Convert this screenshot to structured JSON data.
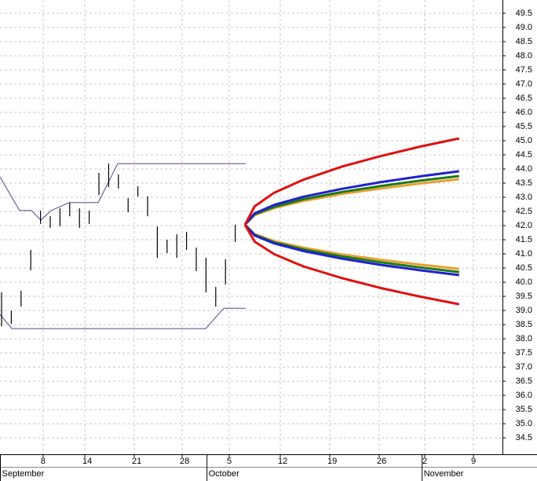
{
  "chart_data": {
    "type": "ohlc",
    "x": [
      0,
      1,
      2,
      3,
      4,
      5,
      6,
      7,
      8,
      9,
      10,
      11,
      12,
      13,
      14,
      15,
      16,
      17,
      18,
      19,
      20,
      21,
      22,
      23,
      24
    ],
    "high": [
      39.64,
      38.99,
      39.7,
      41.14,
      42.53,
      42.33,
      42.61,
      42.81,
      42.61,
      42.53,
      43.86,
      44.19,
      43.81,
      42.97,
      43.39,
      43.03,
      41.97,
      41.5,
      41.69,
      41.78,
      41.22,
      40.86,
      39.83,
      40.81,
      42.03
    ],
    "low": [
      38.44,
      38.53,
      39.14,
      40.42,
      42.06,
      41.92,
      41.97,
      42.33,
      41.92,
      42.06,
      43.08,
      43.36,
      43.31,
      42.47,
      43.03,
      42.33,
      40.86,
      41.03,
      40.86,
      41.14,
      40.39,
      39.64,
      39.14,
      39.92,
      41.42
    ],
    "bar_color": "#000000",
    "envelope": [
      {
        "color": "#5a3f8f",
        "x": [
          -0.16,
          1.85,
          3.06,
          4.03,
          5.08,
          6.94,
          9.92,
          11.94,
          25.08
        ],
        "values": [
          43.72,
          42.53,
          42.53,
          42.19,
          42.53,
          42.81,
          42.81,
          44.19,
          44.19
        ]
      },
      {
        "color": "#5a3f8f",
        "x": [
          -0.16,
          1.05,
          20.97,
          22.82,
          25.08
        ],
        "values": [
          38.86,
          38.36,
          38.36,
          39.08,
          39.08
        ]
      }
    ],
    "forecast": {
      "x": [
        25,
        26,
        28,
        31,
        35,
        39,
        43,
        47
      ],
      "series": [
        {
          "color": "#e8a030",
          "values": [
            42.03,
            42.37,
            42.62,
            42.87,
            43.12,
            43.31,
            43.49,
            43.64
          ]
        },
        {
          "color": "#e8a030",
          "values": [
            42.03,
            41.7,
            41.45,
            41.22,
            40.98,
            40.79,
            40.62,
            40.47
          ]
        },
        {
          "color": "#1a7a1a",
          "values": [
            42.03,
            42.4,
            42.66,
            42.93,
            43.19,
            43.4,
            43.59,
            43.75
          ]
        },
        {
          "color": "#1a7a1a",
          "values": [
            42.03,
            41.67,
            41.41,
            41.16,
            40.91,
            40.7,
            40.52,
            40.36
          ]
        },
        {
          "color": "#2020d0",
          "values": [
            42.03,
            42.43,
            42.73,
            43.02,
            43.3,
            43.54,
            43.74,
            43.92
          ]
        },
        {
          "color": "#2020d0",
          "values": [
            42.03,
            41.65,
            41.37,
            41.1,
            40.83,
            40.61,
            40.42,
            40.25
          ]
        },
        {
          "color": "#e01010",
          "values": [
            42.03,
            42.68,
            43.16,
            43.62,
            44.09,
            44.46,
            44.79,
            45.08
          ]
        },
        {
          "color": "#e01010",
          "values": [
            42.03,
            41.43,
            40.99,
            40.56,
            40.14,
            39.79,
            39.49,
            39.22
          ]
        }
      ]
    },
    "xlim": [
      -0.16,
      51.45
    ],
    "xticks": [
      {
        "value": 4.27,
        "label": "8"
      },
      {
        "value": 8.55,
        "label": "14"
      },
      {
        "value": 13.63,
        "label": "21"
      },
      {
        "value": 18.55,
        "label": "28"
      },
      {
        "value": 23.39,
        "label": "5"
      },
      {
        "value": 28.63,
        "label": "12"
      },
      {
        "value": 33.71,
        "label": "19"
      },
      {
        "value": 38.79,
        "label": "26"
      },
      {
        "value": 43.47,
        "label": "2"
      },
      {
        "value": 48.47,
        "label": "9"
      }
    ],
    "months": [
      {
        "value": -0.16,
        "label": "September"
      },
      {
        "value": 21.1,
        "label": "October"
      },
      {
        "value": 43.2,
        "label": "November"
      }
    ],
    "ylim": [
      33.92,
      49.97
    ],
    "yticks": [
      34.5,
      {
        "value": 35,
        "label": "35.0"
      },
      35.5,
      {
        "value": 36,
        "label": "36.0"
      },
      36.5,
      {
        "value": 37,
        "label": "37.0"
      },
      37.5,
      {
        "value": 38,
        "label": "38.0"
      },
      38.5,
      {
        "value": 39,
        "label": "39.0"
      },
      39.5,
      {
        "value": 40,
        "label": "40.0"
      },
      40.5,
      {
        "value": 41,
        "label": "41.0"
      },
      41.5,
      {
        "value": 42,
        "label": "42.0"
      },
      42.5,
      {
        "value": 43,
        "label": "43.0"
      },
      43.5,
      {
        "value": 44,
        "label": "44.0"
      },
      44.5,
      {
        "value": 45,
        "label": "45.0"
      },
      45.5,
      {
        "value": 46,
        "label": "46.0"
      },
      46.5,
      {
        "value": 47,
        "label": "47.0"
      },
      47.5,
      {
        "value": 48,
        "label": "48.0"
      },
      48.5,
      {
        "value": 49,
        "label": "49.0"
      },
      49.5
    ],
    "grid": true
  }
}
